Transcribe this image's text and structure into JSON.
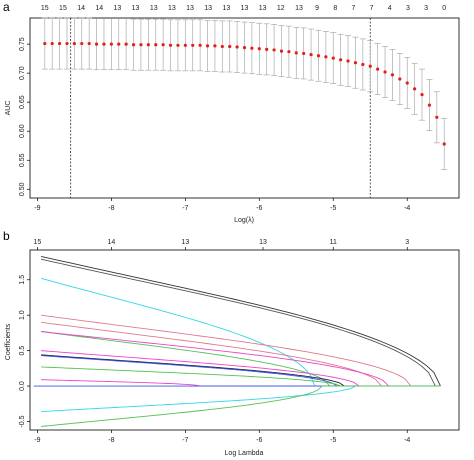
{
  "panels": {
    "a_label": "a",
    "b_label": "b"
  },
  "chart_data": [
    {
      "panel": "a",
      "type": "scatter",
      "xlabel": "Log(λ)",
      "ylabel": "AUC",
      "xlim": [
        -9.1,
        -3.3
      ],
      "ylim": [
        0.485,
        0.795
      ],
      "x_ticks": [
        -9,
        -8,
        -7,
        -6,
        -5,
        -4
      ],
      "y_ticks": [
        0.5,
        0.55,
        0.6,
        0.65,
        0.7,
        0.75
      ],
      "y_tick_labels": [
        "0.50",
        "0.55",
        "0.60",
        "0.65",
        "0.70",
        "0.75"
      ],
      "top_ticks": [
        "15",
        "15",
        "14",
        "14",
        "13",
        "13",
        "13",
        "13",
        "13",
        "13",
        "13",
        "13",
        "13",
        "12",
        "13",
        "9",
        "8",
        "7",
        "7",
        "4",
        "3",
        "3",
        "0"
      ],
      "vlines": [
        -8.55,
        -4.5
      ],
      "grid": false,
      "point_color": "#e0201a",
      "errorbar_color": "#aaaaaa",
      "x": [
        -8.9,
        -8.8,
        -8.7,
        -8.6,
        -8.5,
        -8.4,
        -8.3,
        -8.2,
        -8.1,
        -8.0,
        -7.9,
        -7.8,
        -7.7,
        -7.6,
        -7.5,
        -7.4,
        -7.3,
        -7.2,
        -7.1,
        -7.0,
        -6.9,
        -6.8,
        -6.7,
        -6.6,
        -6.5,
        -6.4,
        -6.3,
        -6.2,
        -6.1,
        -6.0,
        -5.9,
        -5.8,
        -5.7,
        -5.6,
        -5.5,
        -5.4,
        -5.3,
        -5.2,
        -5.1,
        -5.0,
        -4.9,
        -4.8,
        -4.7,
        -4.6,
        -4.5,
        -4.4,
        -4.3,
        -4.2,
        -4.1,
        -4.0,
        -3.9,
        -3.8,
        -3.7,
        -3.6,
        -3.5
      ],
      "y": [
        0.751,
        0.751,
        0.751,
        0.751,
        0.751,
        0.751,
        0.751,
        0.75,
        0.75,
        0.75,
        0.75,
        0.75,
        0.749,
        0.749,
        0.749,
        0.749,
        0.749,
        0.748,
        0.748,
        0.748,
        0.748,
        0.748,
        0.747,
        0.747,
        0.746,
        0.746,
        0.745,
        0.744,
        0.743,
        0.742,
        0.741,
        0.74,
        0.738,
        0.737,
        0.735,
        0.734,
        0.732,
        0.73,
        0.728,
        0.726,
        0.723,
        0.721,
        0.718,
        0.715,
        0.712,
        0.707,
        0.702,
        0.697,
        0.69,
        0.683,
        0.673,
        0.663,
        0.645,
        0.624,
        0.578
      ],
      "upper": [
        0.795,
        0.795,
        0.795,
        0.795,
        0.795,
        0.795,
        0.795,
        0.794,
        0.794,
        0.794,
        0.794,
        0.794,
        0.793,
        0.793,
        0.793,
        0.793,
        0.793,
        0.792,
        0.792,
        0.792,
        0.792,
        0.792,
        0.791,
        0.791,
        0.79,
        0.79,
        0.789,
        0.788,
        0.787,
        0.786,
        0.785,
        0.784,
        0.782,
        0.781,
        0.779,
        0.778,
        0.776,
        0.774,
        0.772,
        0.77,
        0.767,
        0.765,
        0.762,
        0.759,
        0.756,
        0.751,
        0.746,
        0.741,
        0.734,
        0.727,
        0.717,
        0.707,
        0.689,
        0.668,
        0.622
      ],
      "lower": [
        0.707,
        0.707,
        0.707,
        0.707,
        0.707,
        0.707,
        0.707,
        0.706,
        0.706,
        0.706,
        0.706,
        0.706,
        0.705,
        0.705,
        0.705,
        0.705,
        0.705,
        0.704,
        0.704,
        0.704,
        0.704,
        0.704,
        0.703,
        0.703,
        0.702,
        0.702,
        0.701,
        0.7,
        0.699,
        0.698,
        0.697,
        0.696,
        0.694,
        0.693,
        0.691,
        0.69,
        0.688,
        0.686,
        0.684,
        0.682,
        0.679,
        0.677,
        0.674,
        0.671,
        0.668,
        0.663,
        0.658,
        0.653,
        0.646,
        0.639,
        0.629,
        0.619,
        0.601,
        0.58,
        0.534
      ]
    },
    {
      "panel": "b",
      "type": "line",
      "xlabel": "Log Lambda",
      "ylabel": "Coefficients",
      "xlim": [
        -9.1,
        -3.3
      ],
      "ylim": [
        -0.62,
        1.92
      ],
      "x_ticks": [
        -9,
        -8,
        -7,
        -6,
        -5,
        -4
      ],
      "y_ticks": [
        -0.5,
        0.0,
        0.5,
        1.0,
        1.5
      ],
      "y_tick_labels": [
        "-0.5",
        "0.0",
        "0.5",
        "1.0",
        "1.5"
      ],
      "top_tick_positions": [
        -9.0,
        -8.0,
        -7.0,
        -5.95,
        -5.0,
        -4.0
      ],
      "top_ticks": [
        "15",
        "14",
        "13",
        "13",
        "11",
        "3"
      ],
      "grid": false,
      "series": [
        {
          "color": "#333333",
          "start": 1.83,
          "zero_at": -3.55
        },
        {
          "color": "#555555",
          "start": 1.79,
          "zero_at": -3.62
        },
        {
          "color": "#33d6e6",
          "start": 1.52,
          "zero_at": -5.25
        },
        {
          "color": "#e07a8a",
          "start": 1.0,
          "zero_at": -3.95
        },
        {
          "color": "#e07a8a",
          "start": 0.9,
          "zero_at": -4.35
        },
        {
          "color": "#55c055",
          "start": 0.77,
          "zero_at": -5.05
        },
        {
          "color": "#ee44cc",
          "start": 0.77,
          "zero_at": -4.25
        },
        {
          "color": "#ee44cc",
          "start": 0.5,
          "zero_at": -4.65
        },
        {
          "color": "#222233",
          "start": 0.44,
          "zero_at": -4.85
        },
        {
          "color": "#3355ee",
          "start": 0.43,
          "zero_at": -4.95
        },
        {
          "color": "#55c055",
          "start": 0.27,
          "zero_at": -4.9
        },
        {
          "color": "#ee44cc",
          "start": 0.09,
          "zero_at": -6.8
        },
        {
          "color": "#3355ee",
          "start": 0.0,
          "zero_at": -9.05
        },
        {
          "color": "#33d6e6",
          "start": -0.36,
          "zero_at": -4.7
        },
        {
          "color": "#55c055",
          "start": -0.57,
          "zero_at": -5.15
        }
      ]
    }
  ]
}
